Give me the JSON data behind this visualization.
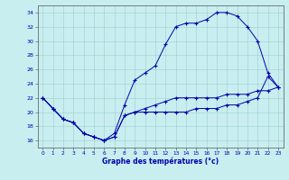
{
  "title": "Graphe des températures (°c)",
  "background_color": "#c8eef0",
  "line_color": "#0000aa",
  "xlim": [
    -0.5,
    23.5
  ],
  "ylim": [
    15,
    35
  ],
  "yticks": [
    16,
    18,
    20,
    22,
    24,
    26,
    28,
    30,
    32,
    34
  ],
  "xticks": [
    0,
    1,
    2,
    3,
    4,
    5,
    6,
    7,
    8,
    9,
    10,
    11,
    12,
    13,
    14,
    15,
    16,
    17,
    18,
    19,
    20,
    21,
    22,
    23
  ],
  "series_top": [
    22,
    20.5,
    19,
    18.5,
    17,
    16.5,
    16,
    17,
    21,
    24.5,
    25.5,
    26.5,
    29.5,
    32,
    32.5,
    32.5,
    33,
    34,
    34,
    33.5,
    32,
    30,
    25.5,
    23.5
  ],
  "series_mid": [
    22,
    20.5,
    19,
    18.5,
    17,
    16.5,
    16,
    16.5,
    19.5,
    20,
    20.5,
    21,
    21.5,
    22,
    22,
    22,
    22,
    22,
    22.5,
    22.5,
    22.5,
    23,
    23,
    23.5
  ],
  "series_bot": [
    22,
    20.5,
    19,
    18.5,
    17,
    16.5,
    16,
    16.5,
    19.5,
    20,
    20,
    20,
    20,
    20,
    20,
    20.5,
    20.5,
    20.5,
    21,
    21,
    21.5,
    22,
    25,
    23.5
  ]
}
